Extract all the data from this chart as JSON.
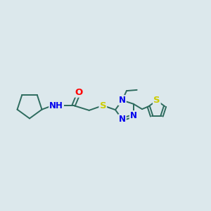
{
  "background_color": "#dce8ec",
  "bond_color": "#2d6b5e",
  "atom_colors": {
    "O": "#ff0000",
    "N": "#0000ee",
    "S": "#cccc00",
    "C": "#2d6b5e",
    "H": "#2d6b5e"
  },
  "font_size_atoms": 8.5,
  "line_width": 1.4,
  "figsize": [
    3.0,
    3.0
  ],
  "dpi": 100,
  "xlim": [
    0,
    12
  ],
  "ylim": [
    2,
    9
  ]
}
